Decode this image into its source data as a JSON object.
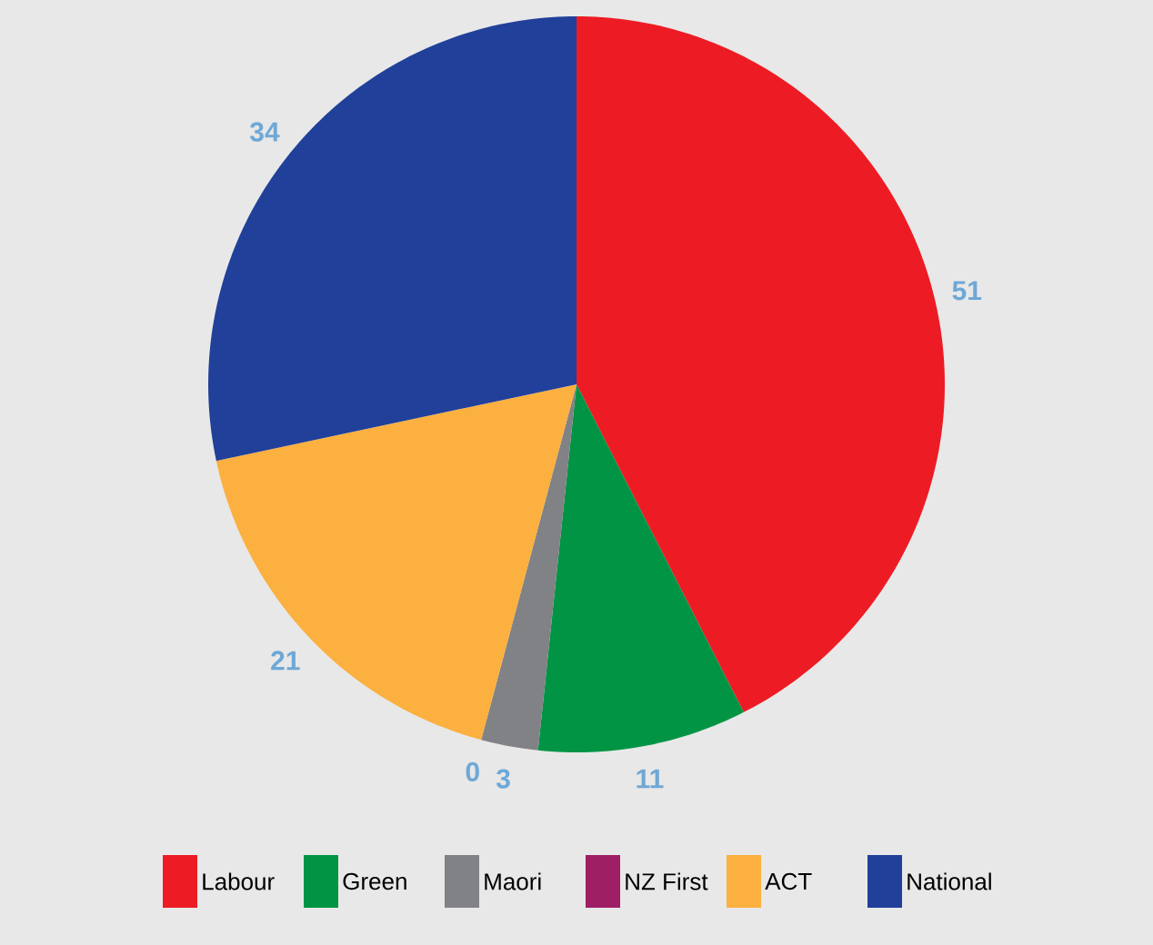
{
  "chart_data": {
    "type": "pie",
    "categories": [
      "Labour",
      "Green",
      "Maori",
      "NZ First",
      "ACT",
      "National"
    ],
    "values": [
      51,
      11,
      3,
      0,
      21,
      34
    ],
    "colors": [
      "#ed1c24",
      "#009444",
      "#808285",
      "#9e1f63",
      "#fbb040",
      "#21409a"
    ],
    "value_labels": [
      "51",
      "11",
      "3",
      "0",
      "21",
      "34"
    ],
    "legend": "bottom"
  }
}
